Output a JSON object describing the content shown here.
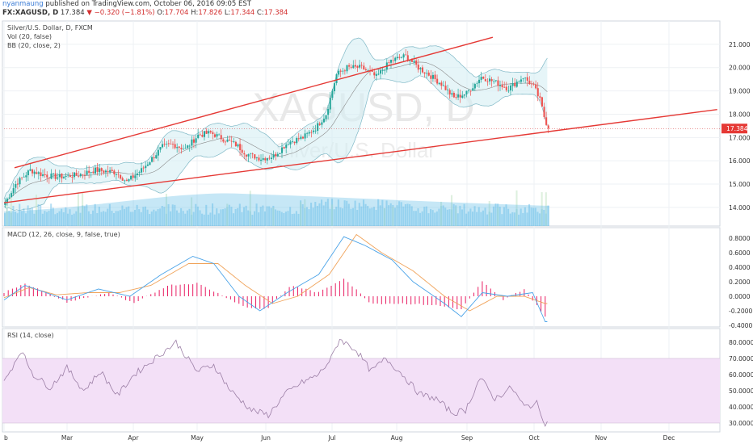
{
  "header": {
    "user": "nyanmaung",
    "published": "published on TradingView.com, October 06, 2016 09:05 EST",
    "symbol": "FX:XAGUSD, D",
    "last": "17.384",
    "arrow": "▼",
    "change": "−0.320 (−1.81%)",
    "o_label": "O:",
    "o": "17.704",
    "h_label": "H:",
    "h": "17.826",
    "l_label": "L:",
    "l": "17.344",
    "c_label": "C:",
    "c": "17.384"
  },
  "watermark": {
    "ticker": "XAGUSD, D",
    "name": "Silver/U.S. Dollar"
  },
  "colors": {
    "up": "#26a69a",
    "down": "#ef5350",
    "trendline": "#e53935",
    "bb_fill": "#d6eff3",
    "volume": "#5db9e6",
    "macd": "#4aa3e8",
    "signal": "#f0a35a",
    "hist": "#e91e63",
    "rsi_band": "#f3e0f7",
    "rsi_line": "#9c7fa6"
  },
  "chart_data": [
    {
      "type": "candlestick",
      "title": "Silver/U.S. Dollar, D, FXCM",
      "indicators": [
        "Vol (20, false)",
        "BB (20, close, 2)"
      ],
      "ylim": [
        13.2,
        22.0
      ],
      "yticks": [
        "21.000",
        "20.000",
        "19.000",
        "18.000",
        "17.000",
        "16.000",
        "15.000",
        "14.000"
      ],
      "last_price_label": "17.384",
      "x_ticks": [
        "b",
        "Mar",
        "Apr",
        "May",
        "Jun",
        "Jul",
        "Aug",
        "Sep",
        "Oct",
        "Nov",
        "Dec"
      ],
      "close_path": [
        [
          0,
          14.2
        ],
        [
          5,
          15.0
        ],
        [
          12,
          15.6
        ],
        [
          18,
          15.4
        ],
        [
          25,
          15.3
        ],
        [
          35,
          15.4
        ],
        [
          43,
          15.6
        ],
        [
          53,
          15.5
        ],
        [
          58,
          15.1
        ],
        [
          65,
          15.6
        ],
        [
          75,
          16.6
        ],
        [
          80,
          16.7
        ],
        [
          86,
          16.5
        ],
        [
          92,
          17.1
        ],
        [
          98,
          17.2
        ],
        [
          105,
          16.9
        ],
        [
          110,
          16.7
        ],
        [
          115,
          16.3
        ],
        [
          122,
          16.1
        ],
        [
          128,
          16.2
        ],
        [
          135,
          16.8
        ],
        [
          142,
          17.0
        ],
        [
          148,
          17.4
        ],
        [
          153,
          18.0
        ],
        [
          158,
          19.7
        ],
        [
          163,
          20.0
        ],
        [
          170,
          20.0
        ],
        [
          177,
          19.6
        ],
        [
          184,
          20.3
        ],
        [
          191,
          20.5
        ],
        [
          197,
          20.0
        ],
        [
          202,
          19.7
        ],
        [
          208,
          19.3
        ],
        [
          214,
          18.7
        ],
        [
          220,
          18.9
        ],
        [
          227,
          19.6
        ],
        [
          233,
          19.4
        ],
        [
          240,
          19.1
        ],
        [
          247,
          19.6
        ],
        [
          252,
          19.2
        ],
        [
          255,
          18.6
        ],
        [
          257,
          17.9
        ],
        [
          259,
          17.38
        ]
      ],
      "trendlines": [
        {
          "name": "upper channel",
          "points": [
            [
              5,
              15.7
            ],
            [
              233,
              21.3
            ]
          ]
        },
        {
          "name": "lower support",
          "points": [
            [
              0,
              14.2
            ],
            [
              340,
              18.2
            ]
          ]
        }
      ]
    },
    {
      "type": "line",
      "title": "MACD (12, 26, close, 9, false, true)",
      "ylim": [
        -0.4,
        0.9
      ],
      "yticks": [
        "0.8000",
        "0.6000",
        "0.4000",
        "0.2000",
        "0.0000",
        "-0.2000",
        "-0.4000"
      ],
      "series": [
        {
          "name": "MACD",
          "values": [
            [
              0,
              -0.05
            ],
            [
              10,
              0.15
            ],
            [
              20,
              0.05
            ],
            [
              30,
              -0.05
            ],
            [
              45,
              0.1
            ],
            [
              60,
              0.0
            ],
            [
              75,
              0.3
            ],
            [
              90,
              0.55
            ],
            [
              100,
              0.45
            ],
            [
              112,
              0.0
            ],
            [
              122,
              -0.2
            ],
            [
              135,
              0.05
            ],
            [
              150,
              0.3
            ],
            [
              162,
              0.82
            ],
            [
              172,
              0.7
            ],
            [
              185,
              0.5
            ],
            [
              195,
              0.2
            ],
            [
              210,
              -0.1
            ],
            [
              218,
              -0.28
            ],
            [
              228,
              0.05
            ],
            [
              240,
              0.0
            ],
            [
              252,
              0.05
            ],
            [
              258,
              -0.35
            ]
          ]
        },
        {
          "name": "Signal",
          "values": [
            [
              0,
              -0.02
            ],
            [
              12,
              0.12
            ],
            [
              25,
              0.02
            ],
            [
              40,
              0.05
            ],
            [
              55,
              0.05
            ],
            [
              70,
              0.15
            ],
            [
              88,
              0.45
            ],
            [
              102,
              0.45
            ],
            [
              115,
              0.15
            ],
            [
              128,
              -0.1
            ],
            [
              140,
              0.0
            ],
            [
              155,
              0.3
            ],
            [
              168,
              0.85
            ],
            [
              180,
              0.6
            ],
            [
              195,
              0.35
            ],
            [
              210,
              0.0
            ],
            [
              222,
              -0.2
            ],
            [
              235,
              0.0
            ],
            [
              248,
              0.0
            ],
            [
              258,
              -0.1
            ]
          ]
        },
        {
          "name": "Histogram",
          "values": [
            [
              0,
              0.05
            ],
            [
              10,
              0.18
            ],
            [
              20,
              0.05
            ],
            [
              30,
              -0.08
            ],
            [
              50,
              0.05
            ],
            [
              62,
              -0.1
            ],
            [
              78,
              0.15
            ],
            [
              92,
              0.18
            ],
            [
              105,
              0.0
            ],
            [
              115,
              -0.15
            ],
            [
              125,
              -0.18
            ],
            [
              137,
              0.15
            ],
            [
              150,
              0.05
            ],
            [
              162,
              0.25
            ],
            [
              175,
              -0.1
            ],
            [
              190,
              -0.1
            ],
            [
              205,
              -0.12
            ],
            [
              218,
              -0.18
            ],
            [
              228,
              0.2
            ],
            [
              238,
              -0.05
            ],
            [
              248,
              0.1
            ],
            [
              258,
              -0.28
            ]
          ]
        }
      ]
    },
    {
      "type": "line",
      "title": "RSI (14, close)",
      "ylim": [
        25,
        88
      ],
      "band": [
        30,
        70
      ],
      "yticks": [
        "80.0000",
        "70.0000",
        "60.0000",
        "50.0000",
        "40.0000",
        "30.0000"
      ],
      "series": [
        {
          "name": "RSI",
          "values": [
            [
              0,
              55
            ],
            [
              8,
              75
            ],
            [
              14,
              60
            ],
            [
              22,
              52
            ],
            [
              30,
              64
            ],
            [
              38,
              50
            ],
            [
              46,
              62
            ],
            [
              54,
              47
            ],
            [
              62,
              60
            ],
            [
              72,
              70
            ],
            [
              82,
              80
            ],
            [
              92,
              62
            ],
            [
              100,
              66
            ],
            [
              108,
              50
            ],
            [
              118,
              38
            ],
            [
              126,
              35
            ],
            [
              134,
              48
            ],
            [
              142,
              55
            ],
            [
              150,
              60
            ],
            [
              156,
              70
            ],
            [
              160,
              82
            ],
            [
              168,
              75
            ],
            [
              175,
              62
            ],
            [
              182,
              70
            ],
            [
              190,
              60
            ],
            [
              198,
              48
            ],
            [
              206,
              45
            ],
            [
              214,
              36
            ],
            [
              220,
              38
            ],
            [
              227,
              58
            ],
            [
              234,
              45
            ],
            [
              242,
              52
            ],
            [
              248,
              40
            ],
            [
              254,
              42
            ],
            [
              258,
              30
            ]
          ]
        }
      ]
    }
  ]
}
